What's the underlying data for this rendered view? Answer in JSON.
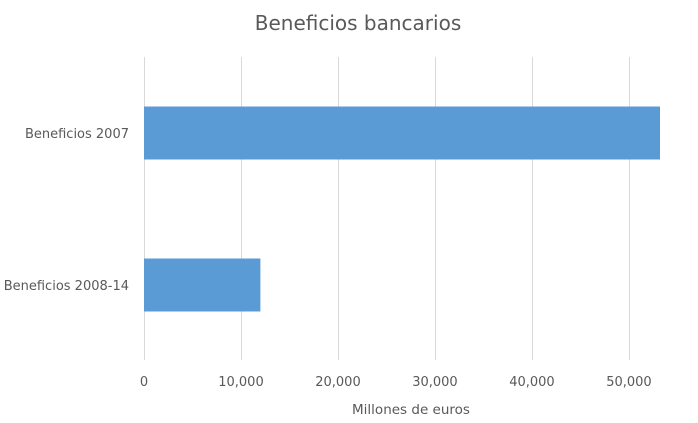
{
  "chart_data": {
    "type": "bar",
    "orientation": "horizontal",
    "title": "Beneficios bancarios",
    "xlabel": "Millones de euros",
    "ylabel": "",
    "categories": [
      "Beneficios 2007",
      "Beneficios 2008-14"
    ],
    "values": [
      53200,
      12000
    ],
    "xlim": [
      0,
      53200
    ],
    "xticks": [
      0,
      10000,
      20000,
      30000,
      40000,
      50000
    ],
    "xtick_labels": [
      "0",
      "10,000",
      "20,000",
      "30,000",
      "40,000",
      "50,000"
    ],
    "grid": "vertical",
    "legend": "none",
    "bar_color": "#5B9BD5"
  }
}
